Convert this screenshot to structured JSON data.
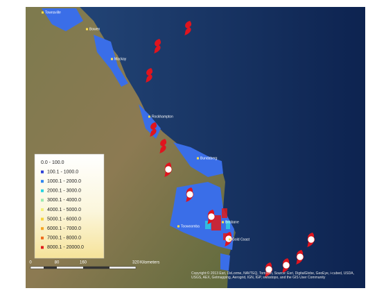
{
  "map": {
    "places": [
      "Townsville",
      "Bowen",
      "Mackay",
      "Rockhampton",
      "Bundaberg",
      "Toowoomba",
      "Brisbane",
      "Gold Coast"
    ],
    "legend": [
      {
        "label": "0.0 - 100.0",
        "color": "#ffffff"
      },
      {
        "label": "100.1 - 1000.0",
        "color": "#2a3fd6"
      },
      {
        "label": "1000.1 - 2000.0",
        "color": "#2f86f0"
      },
      {
        "label": "2000.1 - 3000.0",
        "color": "#27d3e0"
      },
      {
        "label": "3000.1 - 4000.0",
        "color": "#9be8b0"
      },
      {
        "label": "4000.1 - 5000.0",
        "color": "#f2f07a"
      },
      {
        "label": "5000.1 - 6000.0",
        "color": "#f7d43a"
      },
      {
        "label": "6000.1 - 7000.0",
        "color": "#f5a623"
      },
      {
        "label": "7000.1 - 8000.0",
        "color": "#ee6a1c"
      },
      {
        "label": "8000.1 - 20000.0",
        "color": "#e01b1b"
      }
    ],
    "scale": {
      "ticks": [
        "0",
        "80",
        "160",
        "320"
      ],
      "unit": "Kilometers"
    },
    "attribution": "Copyright:© 2013 Esri, DeLorme, NAVTEQ, TomTom, Source: Esri, DigitalGlobe, GeoEye, i-cubed, USDA, USGS, AEX, Getmapping, Aerogrid, IGN, IGP, swisstopo, and the GIS User Community"
  }
}
